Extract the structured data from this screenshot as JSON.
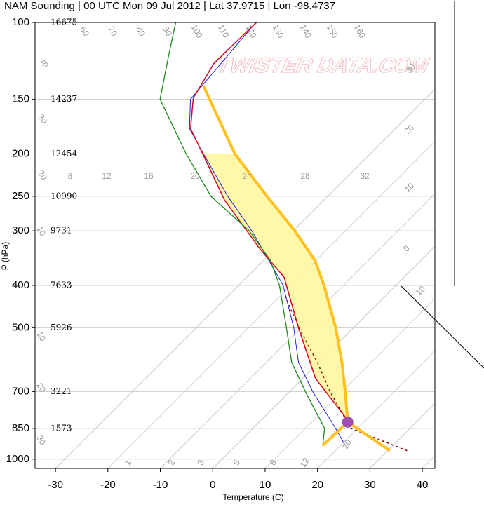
{
  "chart_data": {
    "type": "skewt",
    "title": "NAM Sounding | 00 UTC Mon 09 Jul 2012 | Lat 37.9715 | Lon -98.4737",
    "x_label": "Temperature (C)",
    "y_label": "P (hPa)",
    "watermark": "TWISTER DATA.COM",
    "xlim": [
      -33.9,
      42.4
    ],
    "xticks": [
      -30,
      -20,
      -10,
      0,
      10,
      20,
      30,
      40
    ],
    "ylim": [
      1050,
      100
    ],
    "yticks": [
      100,
      150,
      200,
      250,
      300,
      400,
      500,
      700,
      850,
      1000
    ],
    "log_y": true,
    "grid": true,
    "height_levels": [
      100,
      150,
      200,
      250,
      300,
      400,
      500,
      700,
      850
    ],
    "heights": [
      16675,
      14237,
      12454,
      10990,
      9731,
      7633,
      5926,
      3221,
      1573
    ],
    "top_labels": [
      "60",
      "70",
      "80",
      "90",
      "100",
      "110",
      "120",
      "130",
      "140",
      "150",
      "160"
    ],
    "left_labels": [
      "40",
      "30",
      "20",
      "10",
      "10",
      "20",
      "30"
    ],
    "right_labels": [
      "30",
      "20",
      "10",
      "0",
      "10"
    ],
    "mid_labels": [
      "8",
      "12",
      "16",
      "20",
      "24",
      "28",
      "32"
    ],
    "bottom_labels": [
      "1",
      "2",
      "3",
      "5",
      "8",
      "12",
      "20"
    ],
    "series": [
      {
        "color": "#2020e0",
        "width": 1,
        "x": [
          20.9,
          15.8,
          4.4,
          -3.9,
          -11.4,
          -21.5,
          -37.9,
          -49.1,
          -61.8,
          -69.3,
          -74.7,
          -76.9
        ],
        "y": [
          930,
          850,
          700,
          600,
          500,
          400,
          300,
          250,
          200,
          175,
          150,
          100
        ]
      },
      {
        "color": "#d0102a",
        "width": 1.6,
        "x": [
          30.4,
          17.4,
          13.9,
          2.5,
          -10.4,
          -22.9,
          -32.9,
          -49,
          -62.2,
          -69.1,
          -74.4,
          -77.1,
          -76.8
        ],
        "y": [
          956,
          825,
          781,
          654,
          501,
          383,
          330,
          255,
          199,
          175,
          149,
          124,
          100
        ]
      },
      {
        "color": "#1a8a1a",
        "width": 1.3,
        "x": [
          16.6,
          13.7,
          3.0,
          -5.2,
          -12.8,
          -22.2,
          -28.8,
          -38.4,
          -52.3,
          -65.1,
          -80.5,
          -87.0,
          -92.2
        ],
        "y": [
          930,
          850,
          700,
          600,
          500,
          400,
          350,
          300,
          250,
          200,
          150,
          120,
          100
        ]
      },
      {
        "color": "#8b0000",
        "width": 1.5,
        "dash": true,
        "x": [
          33.7,
          18.7,
          7.7,
          -0.3,
          -10.4,
          -19.5
        ],
        "y": [
          956,
          850,
          700,
          600,
          500,
          420
        ]
      },
      {
        "color": "#ffc020",
        "width": 4,
        "cape": true,
        "x": [
          30.4,
          16.9,
          10.6,
          4.4,
          -3.4,
          -13.7,
          -20.3,
          -29.7,
          -41.6,
          -55.8,
          -74.7
        ],
        "y": [
          956,
          822,
          700,
          600,
          500,
          400,
          350,
          300,
          250,
          200,
          140
        ]
      },
      {
        "color": "#ffc020",
        "width": 4,
        "x": [
          16.6,
          16.9
        ],
        "y": [
          930,
          822
        ]
      }
    ],
    "lcl": {
      "x": 16.9,
      "y": 822,
      "color": "#a050b0"
    }
  }
}
